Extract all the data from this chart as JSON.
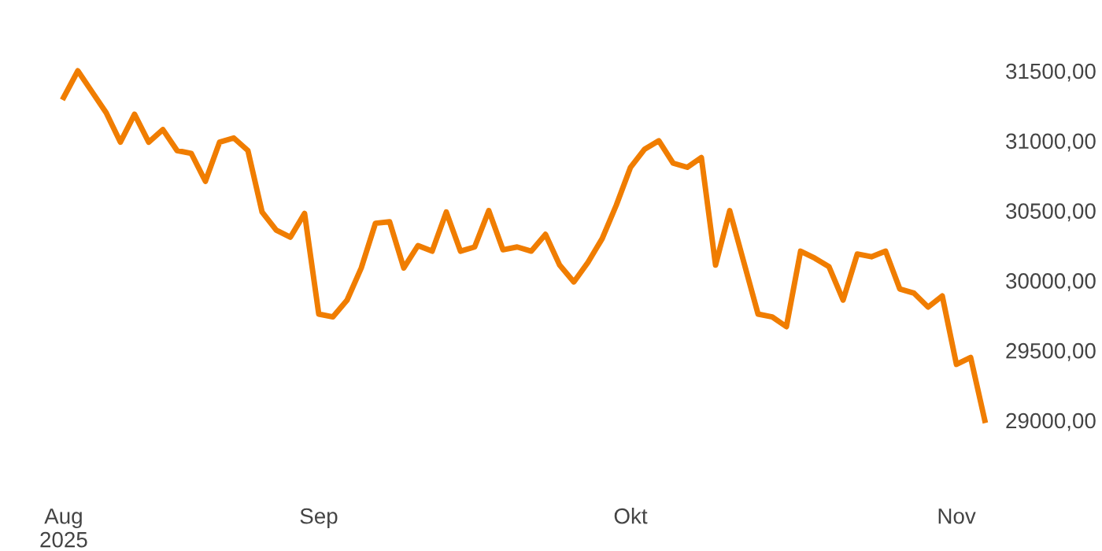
{
  "chart_data": {
    "type": "line",
    "categories": [
      "Aug\n2025",
      null,
      null,
      null,
      null,
      null,
      null,
      null,
      null,
      null,
      null,
      null,
      null,
      null,
      null,
      null,
      null,
      null,
      "Sep",
      null,
      null,
      null,
      null,
      null,
      null,
      null,
      null,
      null,
      null,
      null,
      null,
      null,
      null,
      null,
      null,
      null,
      null,
      null,
      null,
      null,
      "Okt",
      null,
      null,
      null,
      null,
      null,
      null,
      null,
      null,
      null,
      null,
      null,
      null,
      null,
      null,
      null,
      null,
      null,
      null,
      null,
      null,
      null,
      null,
      "Nov",
      null,
      null
    ],
    "series": [
      {
        "color": "#f07d00",
        "values": [
          31310,
          31500,
          31350,
          31200,
          30990,
          31190,
          30990,
          31080,
          30930,
          30910,
          30710,
          30990,
          31020,
          30930,
          30490,
          30360,
          30310,
          30480,
          29760,
          29740,
          29860,
          30090,
          30410,
          30420,
          30090,
          30250,
          30210,
          30490,
          30210,
          30240,
          30500,
          30220,
          30240,
          30210,
          30330,
          30110,
          29990,
          30130,
          30300,
          30540,
          30810,
          30940,
          31000,
          30840,
          30810,
          30880,
          30110,
          30500,
          30130,
          29760,
          29740,
          29670,
          30210,
          30160,
          30100,
          29860,
          30190,
          30170,
          30210,
          29940,
          29910,
          29810,
          29890,
          29400,
          29450,
          29000
        ]
      }
    ],
    "ylim": [
      29000,
      31500
    ],
    "yticks": [
      {
        "value": 29000,
        "label": "29000,00"
      },
      {
        "value": 29500,
        "label": "29500,00"
      },
      {
        "value": 30000,
        "label": "30000,00"
      },
      {
        "value": 30500,
        "label": "30500,00"
      },
      {
        "value": 31000,
        "label": "31000,00"
      },
      {
        "value": 31500,
        "label": "31500,00"
      }
    ],
    "grid": false,
    "legend": false,
    "marker": "none",
    "line_style": "solid"
  }
}
